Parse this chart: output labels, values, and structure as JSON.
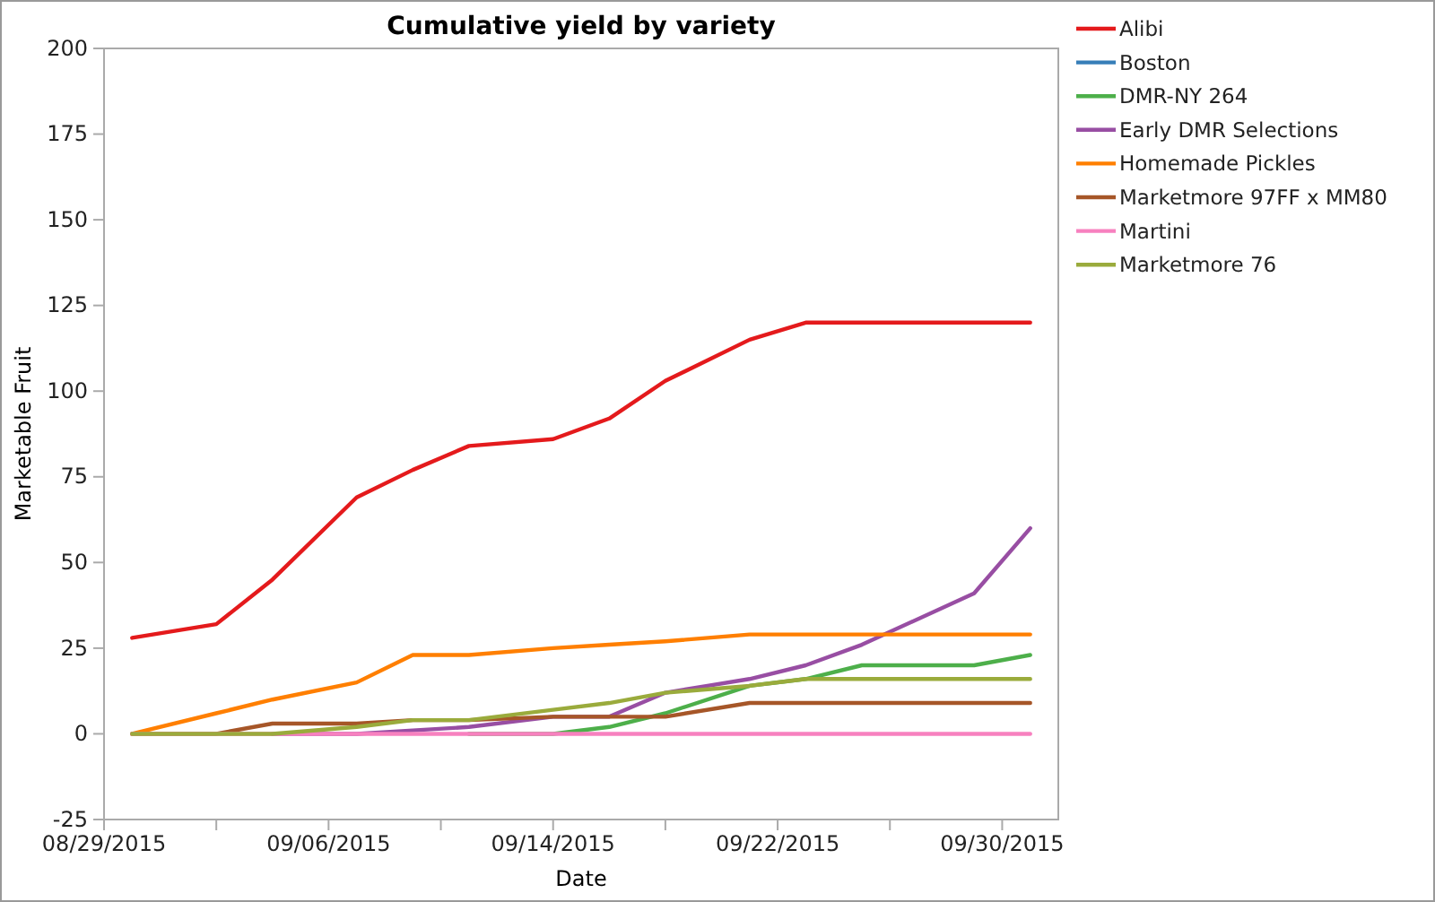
{
  "chart_data": {
    "type": "line",
    "title": "Cumulative yield by variety",
    "xlabel": "Date",
    "ylabel": "Marketable Fruit",
    "x": [
      "2015-08-30",
      "2015-09-02",
      "2015-09-04",
      "2015-09-07",
      "2015-09-09",
      "2015-09-11",
      "2015-09-14",
      "2015-09-16",
      "2015-09-18",
      "2015-09-21",
      "2015-09-23",
      "2015-09-25",
      "2015-09-29",
      "2015-10-01"
    ],
    "series": [
      {
        "name": "Alibi",
        "color": "#e41a1c",
        "values": [
          28,
          32,
          45,
          69,
          77,
          84,
          86,
          92,
          103,
          115,
          120,
          120,
          120,
          120
        ]
      },
      {
        "name": "Boston",
        "color": "#377eb8",
        "values": [
          null,
          null,
          null,
          null,
          null,
          null,
          null,
          null,
          null,
          null,
          null,
          null,
          null,
          null
        ]
      },
      {
        "name": "DMR-NY 264",
        "color": "#4daf4a",
        "values": [
          null,
          null,
          null,
          null,
          null,
          0,
          0,
          2,
          6,
          14,
          16,
          20,
          20,
          23
        ]
      },
      {
        "name": "Early DMR Selections",
        "color": "#984ea3",
        "values": [
          null,
          null,
          0,
          0,
          1,
          2,
          5,
          5,
          12,
          16,
          20,
          26,
          41,
          60
        ]
      },
      {
        "name": "Homemade Pickles",
        "color": "#ff7f00",
        "values": [
          0,
          6,
          10,
          15,
          23,
          23,
          25,
          26,
          27,
          29,
          29,
          29,
          29,
          29
        ]
      },
      {
        "name": "Marketmore 97FF x MM80",
        "color": "#a65628",
        "values": [
          0,
          0,
          3,
          3,
          4,
          4,
          5,
          5,
          5,
          9,
          9,
          9,
          9,
          9
        ]
      },
      {
        "name": "Martini",
        "color": "#f781bf",
        "values": [
          0,
          0,
          0,
          0,
          0,
          0,
          0,
          0,
          0,
          0,
          0,
          0,
          0,
          0
        ]
      },
      {
        "name": "Marketmore 76",
        "color": "#9aab3c",
        "values": [
          0,
          0,
          0,
          2,
          4,
          4,
          7,
          9,
          12,
          14,
          16,
          16,
          16,
          16
        ]
      }
    ],
    "xlim": [
      "2015-08-29",
      "2015-10-02"
    ],
    "xticks": [
      {
        "value": "2015-08-29",
        "label": "08/29/2015"
      },
      {
        "value": "2015-09-02",
        "label": null
      },
      {
        "value": "2015-09-06",
        "label": "09/06/2015"
      },
      {
        "value": "2015-09-10",
        "label": null
      },
      {
        "value": "2015-09-14",
        "label": "09/14/2015"
      },
      {
        "value": "2015-09-18",
        "label": null
      },
      {
        "value": "2015-09-22",
        "label": "09/22/2015"
      },
      {
        "value": "2015-09-26",
        "label": null
      },
      {
        "value": "2015-09-30",
        "label": "09/30/2015"
      }
    ],
    "ylim": [
      -25,
      200
    ],
    "yticks": [
      -25,
      0,
      25,
      50,
      75,
      100,
      125,
      150,
      175,
      200
    ],
    "legend": "top right",
    "grid": false,
    "marker": "none",
    "line_style": "solid"
  }
}
